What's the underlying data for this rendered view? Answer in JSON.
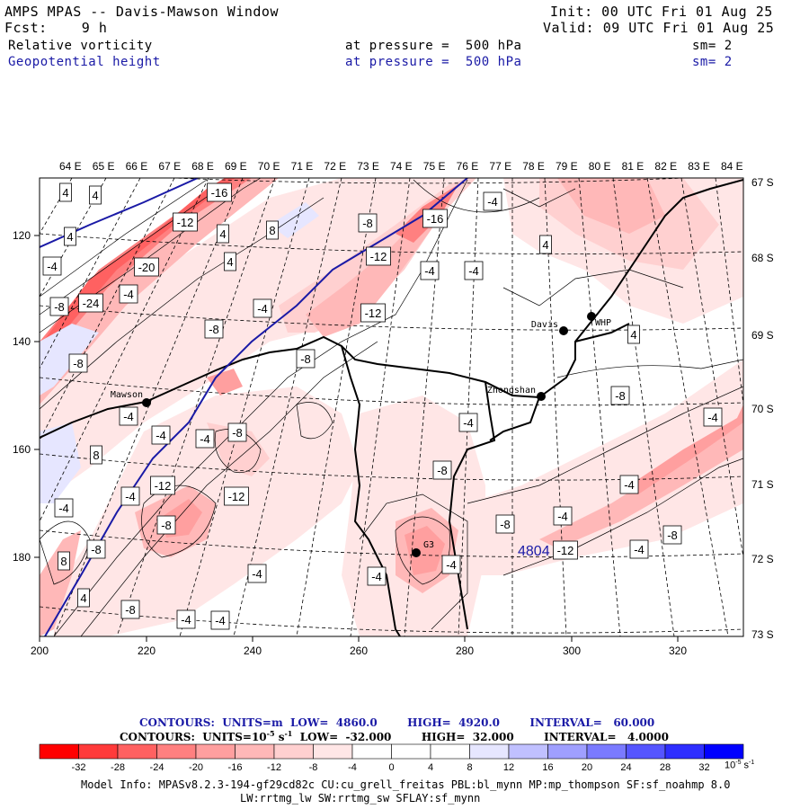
{
  "header": {
    "title": "AMPS MPAS -- Davis-Mawson Window",
    "fcst_label": "Fcst:",
    "fcst_value": "9 h",
    "init": "Init: 00 UTC Fri 01 Aug 25",
    "valid": "Valid: 09 UTC Fri 01 Aug 25",
    "field1": {
      "name": "Relative vorticity",
      "level": "at pressure =  500 hPa",
      "sm": "sm= 2"
    },
    "field2": {
      "name": "Geopotential height",
      "level": "at pressure =  500 hPa",
      "sm": "sm= 2"
    }
  },
  "map": {
    "lon_labels": [
      "64 E",
      "65 E",
      "66 E",
      "67 E",
      "68 E",
      "69 E",
      "70 E",
      "71 E",
      "72 E",
      "73 E",
      "74 E",
      "75 E",
      "76 E",
      "77 E",
      "78 E",
      "79 E",
      "80 E",
      "81 E",
      "82 E",
      "83 E",
      "84 E"
    ],
    "lat_labels": [
      "67 S",
      "68 S",
      "69 S",
      "70 S",
      "71 S",
      "72 S",
      "73 S"
    ],
    "x_ticks": [
      "200",
      "220",
      "240",
      "260",
      "280",
      "300",
      "320"
    ],
    "y_ticks": [
      "120",
      "140",
      "160",
      "180"
    ],
    "stations": [
      {
        "name": "Mawson"
      },
      {
        "name": "Davis"
      },
      {
        "name": "WHP"
      },
      {
        "name": "Zhongshan"
      },
      {
        "name": "G3"
      }
    ],
    "height_label": "4804",
    "vort_labels": [
      "4",
      "4",
      "-16",
      "-4",
      "4",
      "-12",
      "4",
      "8",
      "-8",
      "-16",
      "-4",
      "4",
      "-20",
      "4",
      "-12",
      "-4",
      "-4",
      "-8",
      "-24",
      "-4",
      "-4",
      "-8",
      "-12",
      "4",
      "-8",
      "-8",
      "-4",
      "-8",
      "-4",
      "-4",
      "-8",
      "-4",
      "-4",
      "8",
      "-8",
      "-4",
      "-4",
      "-12",
      "-4",
      "-12",
      "-8",
      "-8",
      "8",
      "-8",
      "-4",
      "-4",
      "-4",
      "-4",
      "-8",
      "-4",
      "-12",
      "4",
      "-4",
      "-8",
      "-4"
    ]
  },
  "contour_info": {
    "line1": "CONTOURS:  UNITS=m  LOW=  4860.0        HIGH=  4920.0        INTERVAL=   60.000",
    "line2": "CONTOURS:  UNITS=10",
    "line2_sup": "-5",
    "line2_unit": " s",
    "line2_sup2": "-1",
    "line2_rest": "  LOW=  -32.000        HIGH=  32.000        INTERVAL=   4.0000"
  },
  "colorbar": {
    "labels": [
      "-32",
      "-28",
      "-24",
      "-20",
      "-16",
      "-12",
      "-8",
      "-4",
      "0",
      "4",
      "8",
      "12",
      "16",
      "20",
      "24",
      "28",
      "32"
    ],
    "unit": "10",
    "unit_sup": "-5",
    "unit_tail": " s",
    "unit_sup2": "-1",
    "colors": [
      "#ff0000",
      "#ff3a3a",
      "#ff6161",
      "#ff8080",
      "#ff9f9f",
      "#ffb8b8",
      "#ffd0d0",
      "#ffe6e6",
      "#ffffff",
      "#ffffff",
      "#e6e6ff",
      "#c0c0ff",
      "#9f9fff",
      "#7a7aff",
      "#5555ff",
      "#2e2eff",
      "#0000ff"
    ]
  },
  "model_info": {
    "line1": "Model Info: MPASv8.2.3-194-gf29cd82c CU:cu_grell_freitas PBL:bl_mynn MP:mp_thompson SF:sf_noahmp 8.0",
    "line2": "LW:rrtmg_lw SW:rrtmg_sw SFLAY:sf_mynn"
  }
}
